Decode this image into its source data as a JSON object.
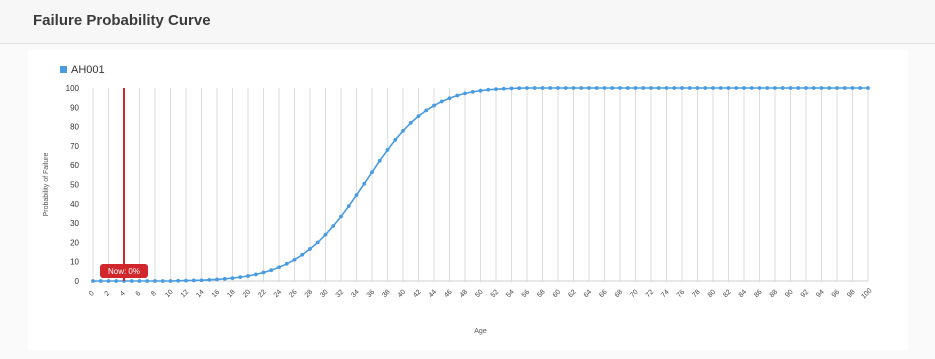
{
  "panel": {
    "title": "Failure Probability Curve"
  },
  "chart_data": {
    "type": "line",
    "title": "",
    "xlabel": "Age",
    "ylabel": "Probability of Failure",
    "xlim": [
      0,
      100
    ],
    "ylim": [
      0,
      100
    ],
    "y_ticks": [
      0,
      10,
      20,
      30,
      40,
      50,
      60,
      70,
      80,
      90,
      100
    ],
    "x_ticks": [
      0,
      2,
      4,
      6,
      8,
      10,
      12,
      14,
      16,
      18,
      20,
      22,
      24,
      26,
      28,
      30,
      32,
      34,
      36,
      38,
      40,
      42,
      44,
      46,
      48,
      50,
      52,
      54,
      56,
      58,
      60,
      62,
      64,
      66,
      68,
      70,
      72,
      74,
      76,
      78,
      80,
      82,
      84,
      86,
      88,
      90,
      92,
      94,
      96,
      98,
      100
    ],
    "grid": "vertical",
    "legend_position": "top-left",
    "colors": {
      "series": "#4a9be0",
      "now_marker": "#d0262c",
      "grid": "#dcdcdc"
    },
    "series": [
      {
        "name": "AH001",
        "x": [
          0,
          1,
          2,
          3,
          4,
          5,
          6,
          7,
          8,
          9,
          10,
          11,
          12,
          13,
          14,
          15,
          16,
          17,
          18,
          19,
          20,
          21,
          22,
          23,
          24,
          25,
          26,
          27,
          28,
          29,
          30,
          31,
          32,
          33,
          34,
          35,
          36,
          37,
          38,
          39,
          40,
          41,
          42,
          43,
          44,
          45,
          46,
          47,
          48,
          49,
          50,
          51,
          52,
          53,
          54,
          55,
          56,
          57,
          58,
          59,
          60,
          61,
          62,
          63,
          64,
          65,
          66,
          67,
          68,
          69,
          70,
          71,
          72,
          73,
          74,
          75,
          76,
          77,
          78,
          79,
          80,
          81,
          82,
          83,
          84,
          85,
          86,
          87,
          88,
          89,
          90,
          91,
          92,
          93,
          94,
          95,
          96,
          97,
          98,
          99,
          100
        ],
        "y": [
          0,
          0,
          0,
          0,
          0,
          0,
          0,
          0,
          0,
          0,
          0,
          0.1,
          0.2,
          0.3,
          0.4,
          0.6,
          0.8,
          1.1,
          1.5,
          2,
          2.6,
          3.4,
          4.4,
          5.6,
          7.1,
          8.9,
          11,
          13.6,
          16.6,
          20,
          24,
          28.5,
          33.4,
          38.8,
          44.5,
          50.4,
          56.4,
          62.3,
          67.9,
          73.1,
          77.8,
          81.9,
          85.4,
          88.4,
          90.9,
          93,
          94.7,
          96.1,
          97.2,
          98,
          98.6,
          99.1,
          99.4,
          99.6,
          99.8,
          99.9,
          100,
          100,
          100,
          100,
          100,
          100,
          100,
          100,
          100,
          100,
          100,
          100,
          100,
          100,
          100,
          100,
          100,
          100,
          100,
          100,
          100,
          100,
          100,
          100,
          100,
          100,
          100,
          100,
          100,
          100,
          100,
          100,
          100,
          100,
          100,
          100,
          100,
          100,
          100,
          100,
          100,
          100,
          100,
          100,
          100
        ]
      }
    ],
    "annotations": [
      {
        "label": "Now: 0%",
        "x": 4,
        "y": 0
      }
    ]
  }
}
